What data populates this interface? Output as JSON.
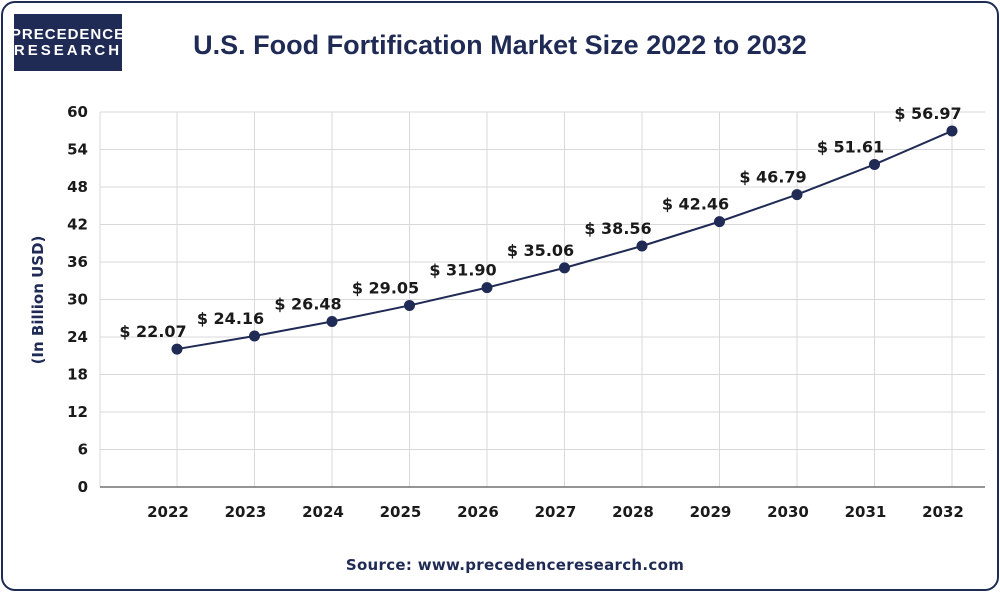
{
  "logo": {
    "line1": "PRECEDENCE",
    "line2": "RESEARCH"
  },
  "source": "Source: www.precedenceresearch.com",
  "colors": {
    "primary": "#1f2a55",
    "grid": "#d9d9d9",
    "text": "#1a1a1a"
  },
  "chart_data": {
    "type": "line",
    "title": "U.S. Food Fortification Market Size 2022 to 2032",
    "xlabel": "",
    "ylabel": "(In Billion USD)",
    "ylim": [
      0,
      60
    ],
    "yticks": [
      0,
      6,
      12,
      18,
      24,
      30,
      36,
      42,
      48,
      54,
      60
    ],
    "categories": [
      "2022",
      "2023",
      "2024",
      "2025",
      "2026",
      "2027",
      "2028",
      "2029",
      "2030",
      "2031",
      "2032"
    ],
    "series": [
      {
        "name": "U.S. Food Fortification Market Size",
        "values": [
          22.07,
          24.16,
          26.48,
          29.05,
          31.9,
          35.06,
          38.56,
          42.46,
          46.79,
          51.61,
          56.97
        ],
        "labels": [
          "$ 22.07",
          "$ 24.16",
          "$ 26.48",
          "$ 29.05",
          "$ 31.90",
          "$ 35.06",
          "$ 38.56",
          "$ 42.46",
          "$ 46.79",
          "$ 51.61",
          "$ 56.97"
        ]
      }
    ],
    "grid": true
  }
}
